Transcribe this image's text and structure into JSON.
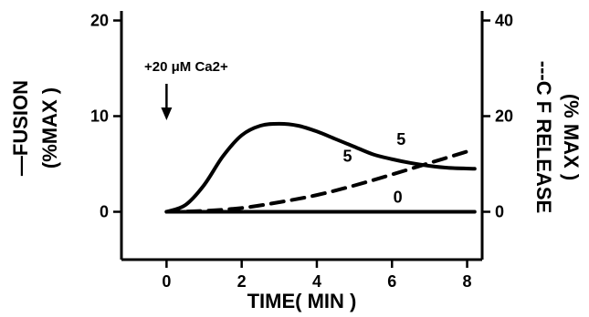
{
  "chart_data": {
    "type": "line",
    "xlabel": "TIME( MIN )",
    "ylabel_left": "FUSION",
    "ylabel_left_unit": "(%MAX )",
    "ylabel_right": "C F RELEASE",
    "ylabel_right_unit": "(% MAX )",
    "left_prefix": "—",
    "right_prefix": "---",
    "xlim": [
      -1.2,
      8.4
    ],
    "ylim_left": [
      -5,
      21
    ],
    "ylim_right": [
      -10,
      42
    ],
    "x_ticks": [
      "0",
      "2",
      "4",
      "6",
      "8"
    ],
    "y_left_ticks": [
      "0",
      "10",
      "20"
    ],
    "y_right_ticks": [
      "0",
      "20",
      "40"
    ],
    "annotation": "+20 μM Ca2+",
    "arrow_at_x": 0,
    "series": [
      {
        "label": "5",
        "axis": "left",
        "style": "solid",
        "x": [
          0,
          0.5,
          1,
          1.5,
          2,
          2.5,
          3,
          3.5,
          4,
          4.5,
          5,
          5.5,
          6,
          6.5,
          7,
          7.5,
          8.2
        ],
        "y": [
          0,
          0.7,
          2.8,
          5.8,
          8.0,
          9.0,
          9.2,
          9.0,
          8.4,
          7.6,
          6.8,
          6.0,
          5.5,
          5.1,
          4.8,
          4.6,
          4.5
        ]
      },
      {
        "label": "5",
        "axis": "right",
        "style": "dashed",
        "x": [
          0,
          1,
          2,
          3,
          4,
          5,
          6,
          7,
          8
        ],
        "y": [
          0,
          0.2,
          0.8,
          2.0,
          3.5,
          5.5,
          7.8,
          10.2,
          12.6
        ]
      },
      {
        "label": "0",
        "axis": "left",
        "style": "solid",
        "x": [
          0,
          8.2
        ],
        "y": [
          0,
          0
        ]
      }
    ]
  }
}
